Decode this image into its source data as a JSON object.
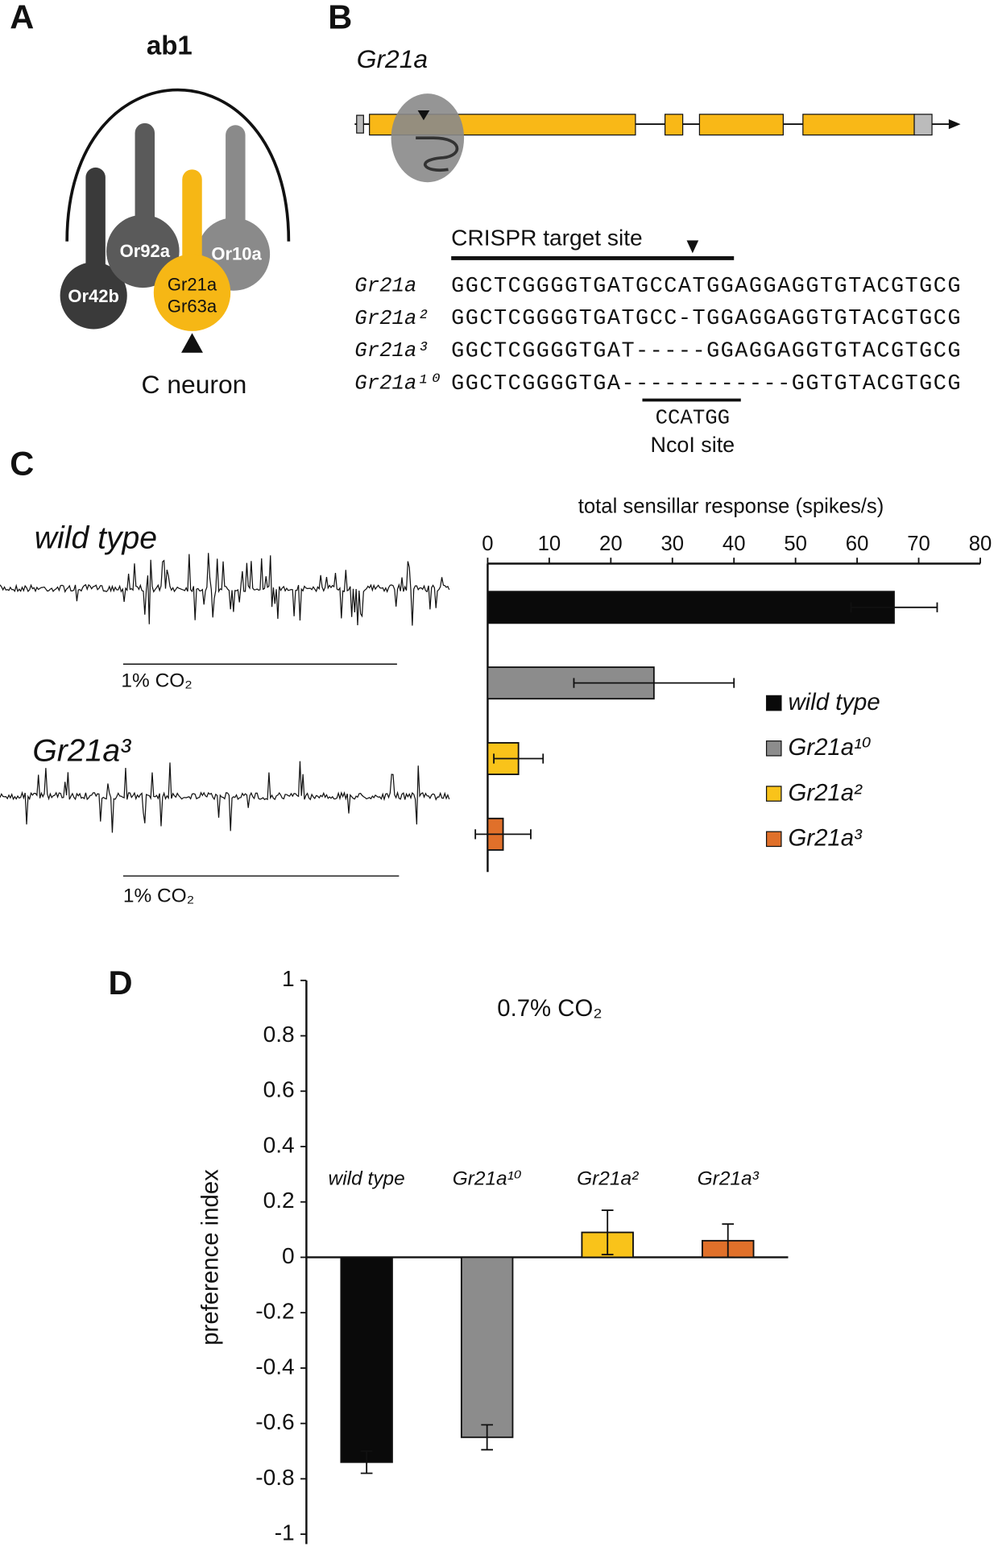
{
  "panel_a": {
    "label": "A",
    "sensillum": "ab1",
    "neurons": [
      "Or42b",
      "Or92a",
      "Or10a"
    ],
    "c_neuron_receptors": [
      "Gr21a",
      "Gr63a"
    ],
    "arrow_label": "C neuron"
  },
  "panel_b": {
    "label": "B",
    "gene": "Gr21a",
    "target_label": "CRISPR target site",
    "alignment": [
      {
        "allele": "Gr21a",
        "sequence": "GGCTCGGGGTGATGCCATGGAGGAGGTGTACGTGCG"
      },
      {
        "allele": "Gr21a²",
        "sequence": "GGCTCGGGGTGATGCC-TGGAGGAGGTGTACGTGCG"
      },
      {
        "allele": "Gr21a³",
        "sequence": "GGCTCGGGGTGAT-----GGAGGAGGTGTACGTGCG"
      },
      {
        "allele": "Gr21a¹⁰",
        "sequence": "GGCTCGGGGTGA------------GGTGTACGTGCG"
      }
    ],
    "site": "CCATGG",
    "site_label": "NcoI site"
  },
  "panel_c": {
    "label": "C",
    "traces": [
      {
        "label": "wild type",
        "stimulus": "1% CO₂"
      },
      {
        "label": "Gr21a³",
        "stimulus": "1% CO₂"
      }
    ]
  },
  "panel_d": {
    "label": "D"
  },
  "chart_data": [
    {
      "type": "bar",
      "orientation": "horizontal",
      "xlabel": "total sensillar response (spikes/s)",
      "categories": [
        "wild type",
        "Gr21a¹⁰",
        "Gr21a²",
        "Gr21a³"
      ],
      "values": [
        66,
        27,
        5,
        2.5
      ],
      "errors": [
        7,
        13,
        4,
        4.5
      ],
      "colors": [
        "#0a0a0a",
        "#8c8c8c",
        "#f9c31a",
        "#e0702a"
      ],
      "xlim": [
        0,
        80
      ],
      "xticks": [
        0,
        10,
        20,
        30,
        40,
        50,
        60,
        70,
        80
      ],
      "legend": "right"
    },
    {
      "type": "bar",
      "orientation": "vertical",
      "title": "0.7% CO₂",
      "ylabel": "preference index",
      "categories": [
        "wild type",
        "Gr21a¹⁰",
        "Gr21a²",
        "Gr21a³"
      ],
      "values": [
        -0.74,
        -0.65,
        0.09,
        0.06
      ],
      "errors": [
        0.04,
        0.045,
        0.08,
        0.06
      ],
      "colors": [
        "#0a0a0a",
        "#8c8c8c",
        "#f9c31a",
        "#e0702a"
      ],
      "ylim": [
        -1,
        1
      ],
      "yticks": [
        1,
        0.8,
        0.6,
        0.4,
        0.2,
        0,
        -0.2,
        -0.4,
        -0.6,
        -0.8,
        -1
      ]
    }
  ]
}
